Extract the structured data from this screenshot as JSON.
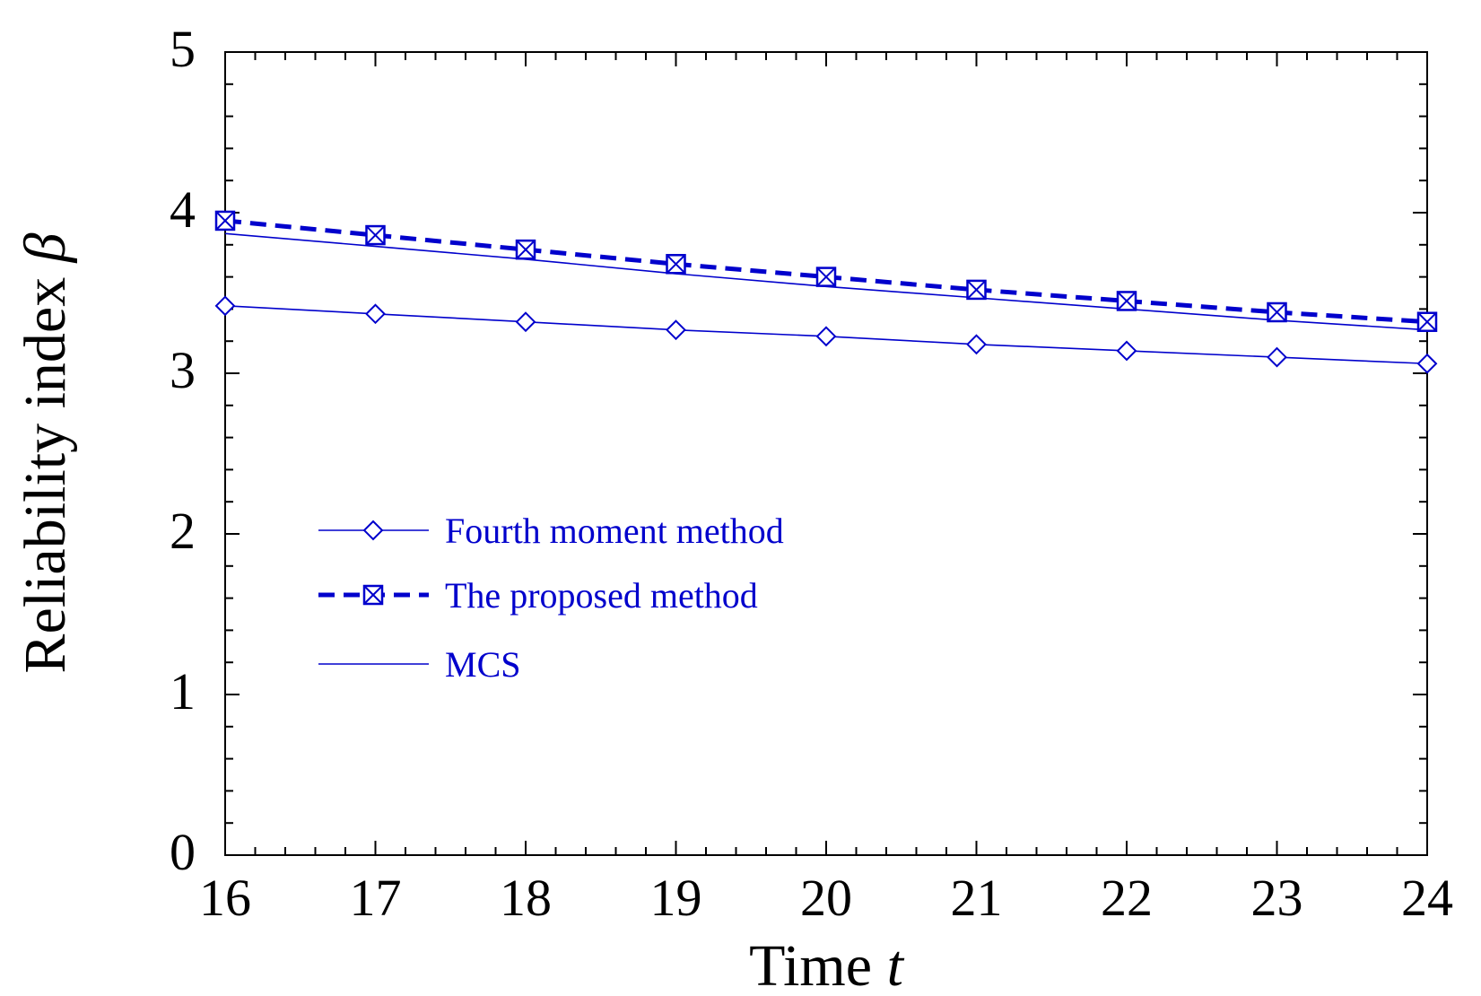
{
  "chart_data": {
    "type": "line",
    "title": "",
    "xlabel": "Time",
    "xlabel_var": "t",
    "ylabel": "Reliability index",
    "ylabel_var": "β",
    "xlim": [
      16,
      24
    ],
    "ylim": [
      0,
      5
    ],
    "xticks": [
      "16",
      "17",
      "18",
      "19",
      "20",
      "21",
      "22",
      "23",
      "24"
    ],
    "yticks": [
      "0",
      "1",
      "2",
      "3",
      "4",
      "5"
    ],
    "grid": false,
    "legend_position": "left-middle",
    "x": [
      16,
      17,
      18,
      19,
      20,
      21,
      22,
      23,
      24
    ],
    "series": [
      {
        "name": "Fourth moment method",
        "values": [
          3.42,
          3.37,
          3.32,
          3.27,
          3.23,
          3.18,
          3.14,
          3.1,
          3.06
        ],
        "marker": "diamond",
        "line": "solid"
      },
      {
        "name": "The proposed method",
        "values": [
          3.95,
          3.86,
          3.77,
          3.68,
          3.6,
          3.52,
          3.45,
          3.38,
          3.32
        ],
        "marker": "boxed-x",
        "line": "dashed"
      },
      {
        "name": "MCS",
        "values": [
          3.87,
          3.79,
          3.71,
          3.62,
          3.54,
          3.47,
          3.4,
          3.33,
          3.27
        ],
        "marker": "none",
        "line": "solid"
      }
    ],
    "colors": {
      "series": "#0000cc",
      "axis": "#000000"
    }
  }
}
